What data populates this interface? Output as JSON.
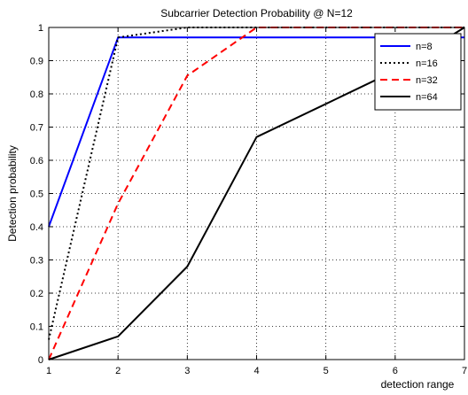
{
  "chart_data": {
    "type": "line",
    "title": "Subcarrier Detection Probability @ N=12",
    "xlabel": "detection range",
    "ylabel": "Detection probability",
    "xlim": [
      1,
      7
    ],
    "ylim": [
      0,
      1
    ],
    "xticks": [
      "1",
      "2",
      "3",
      "4",
      "5",
      "6",
      "7"
    ],
    "yticks": [
      "0",
      "0.1",
      "0.2",
      "0.3",
      "0.4",
      "0.5",
      "0.6",
      "0.7",
      "0.8",
      "0.9",
      "1"
    ],
    "x": [
      1,
      2,
      3,
      4,
      5,
      6,
      7
    ],
    "grid": true,
    "legend_position": "top-right",
    "series": [
      {
        "name": "n=8",
        "color": "#0000ff",
        "style": "solid",
        "values": [
          0.4,
          0.97,
          0.97,
          0.97,
          0.97,
          0.97,
          0.97
        ]
      },
      {
        "name": "n=16",
        "color": "#000000",
        "style": "dotted",
        "values": [
          0.06,
          0.97,
          1.0,
          1.0,
          1.0,
          1.0,
          1.0
        ]
      },
      {
        "name": "n=32",
        "color": "#ff0000",
        "style": "dashed",
        "values": [
          0.0,
          0.47,
          0.855,
          1.0,
          1.0,
          1.0,
          1.0
        ]
      },
      {
        "name": "n=64",
        "color": "#000000",
        "style": "solid",
        "values": [
          0.0,
          0.07,
          0.28,
          0.67,
          0.77,
          0.87,
          1.0
        ]
      }
    ]
  }
}
